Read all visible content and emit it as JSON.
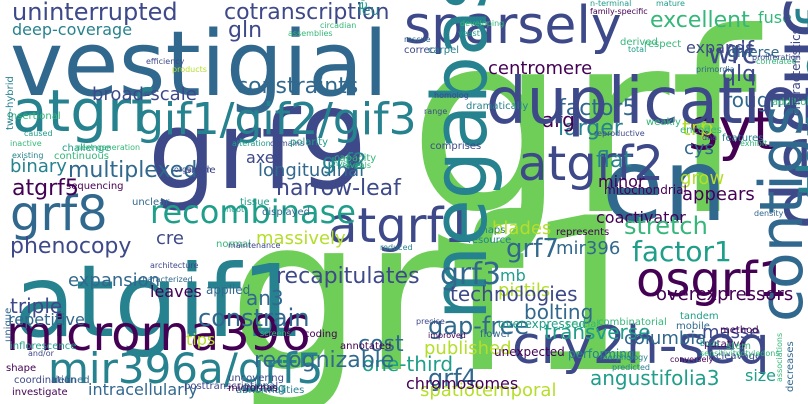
{
  "palette": {
    "purple": "#440154",
    "indigo": "#3e4989",
    "blue": "#31688e",
    "teal": "#26828e",
    "sea": "#1f9e89",
    "green": "#35b779",
    "lime": "#6ece58",
    "light": "#b5de2b",
    "yellow": "#fde725"
  },
  "words": [
    "grf",
    "grf1",
    "vestigial",
    "grf9",
    "en",
    "atgif1",
    "sparsely",
    "atgrf",
    "gif1/gif2/gif3",
    "syt",
    "microrna396",
    "cry2h-seq",
    "osgrf1",
    "grf8",
    "atgrf2",
    "atgrf1",
    "mir396a/grf5",
    "uninterrupted",
    "deep-coverage",
    "cotranscription",
    "gln",
    "leu",
    "excellent",
    "fuse",
    "centromere",
    "wrc",
    "gif",
    "qlq",
    "roughly",
    "larger",
    "factor5",
    "arg",
    "cys",
    "trp",
    "expands",
    "duplications",
    "diverse",
    "constraints",
    "broad-scale",
    "multiplexed",
    "axes",
    "longitudinal",
    "binary",
    "flat",
    "grow",
    "appears",
    "deduced",
    "three-fold",
    "atgrf5",
    "grf2",
    "narrow-leaf",
    "minor",
    "mitochondrial",
    "recombinase",
    "cre",
    "phenocopy",
    "massively",
    "coactivator",
    "mir396",
    "blades",
    "stretch",
    "factor1",
    "expansion",
    "triple",
    "leaves",
    "recapitulates",
    "an3",
    "repetitive",
    "constrain",
    "megabases",
    "mb",
    "grf3",
    "grf7",
    "pistils",
    "contigs",
    "overexpressors",
    "bolting",
    "gap-free",
    "transverse",
    "columbia",
    "masse",
    "cost",
    "one-third",
    "published",
    "recognizable",
    "grf4",
    "angustifolia3",
    "intracellularly",
    "spatiotemporal",
    "size",
    "tips",
    "applied",
    "technologies",
    "unexpected",
    "overexpressed",
    "performing",
    "annotated",
    "developing",
    "yeast",
    "circadian",
    "mature",
    "n-terminal",
    "family-specific",
    "efficiency",
    "products",
    "assemblies",
    "ecotype",
    "correct",
    "carpel",
    "derived",
    "total",
    "respect",
    "rescue",
    "range",
    "homolog",
    "primordia",
    "proliferation",
    "correlated",
    "insertional",
    "two-hybrid",
    "inactive",
    "existing",
    "challenge",
    "continuous",
    "next-generation",
    "caused",
    "alteration",
    "domains",
    "polarity",
    "capacity",
    "reveals",
    "physical",
    "comprises",
    "weakly",
    "reproductive",
    "encodes",
    "dna",
    "features",
    "exhibit",
    "addition",
    "density",
    "characteristics",
    "resource",
    "maps",
    "represents",
    "reduced",
    "organism",
    "single",
    "sequencing",
    "unclear",
    "tissue",
    "shoot",
    "characterized",
    "architecture",
    "displayed",
    "normal",
    "maintenance",
    "screens",
    "coding",
    "precise",
    "improved",
    "flower",
    "crucial",
    "combinatorial",
    "tandem",
    "mobile",
    "putative",
    "stem",
    "sensitivity",
    "cleavage",
    "buds",
    "cotyledons",
    "morphology",
    "conversely",
    "predicted",
    "coordination",
    "investigate",
    "shape",
    "inflorescence",
    "and/or",
    "defined",
    "uncovering",
    "abnormalities",
    "testing",
    "posttranscriptional",
    "micrornas",
    "chromosomes",
    "unique",
    "decreases",
    "associations",
    "dramatically",
    "method",
    "roots",
    "preferentially"
  ]
}
